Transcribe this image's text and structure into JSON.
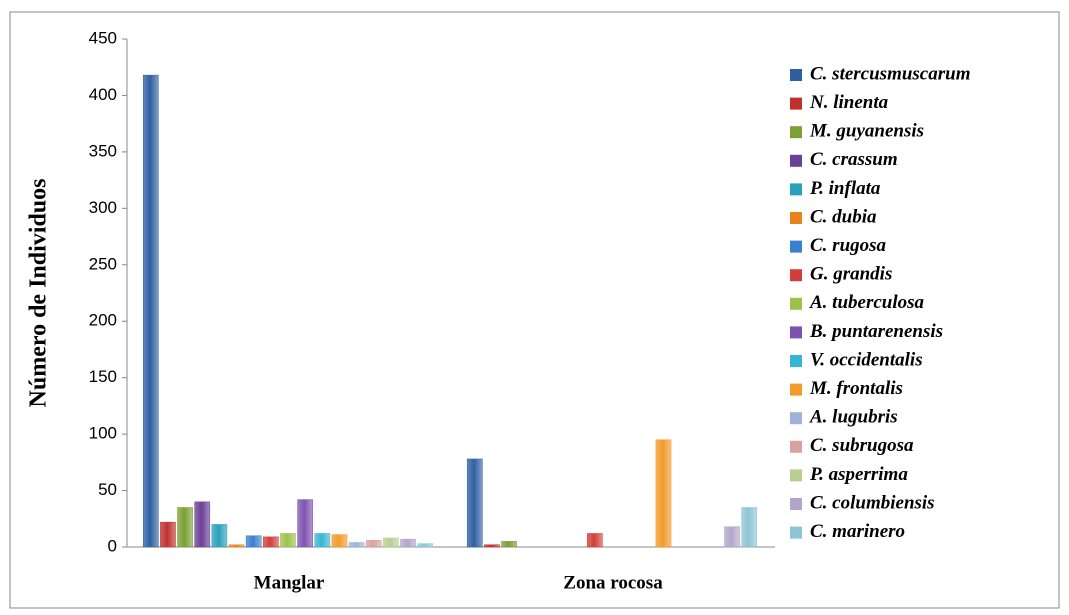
{
  "chart_data": {
    "type": "bar",
    "y_label": "Número de Individuos",
    "categories": [
      "Manglar",
      "Zona rocosa"
    ],
    "ylim": [
      0,
      450
    ],
    "yticks": [
      0,
      50,
      100,
      150,
      200,
      250,
      300,
      350,
      400,
      450
    ],
    "grid": false,
    "series": [
      {
        "name": "C. stercusmuscarum",
        "color": "#2f5fa3",
        "values": [
          418,
          78
        ]
      },
      {
        "name": "N. linenta",
        "color": "#c0312d",
        "values": [
          22,
          2
        ]
      },
      {
        "name": "M. guyanensis",
        "color": "#7ba035",
        "values": [
          35,
          5
        ]
      },
      {
        "name": "C. crassum",
        "color": "#6a3f95",
        "values": [
          40,
          0
        ]
      },
      {
        "name": "P. inflata",
        "color": "#2aa0bb",
        "values": [
          20,
          0
        ]
      },
      {
        "name": "C. dubia",
        "color": "#e8821e",
        "values": [
          2,
          0
        ]
      },
      {
        "name": "C. rugosa",
        "color": "#3a7fd0",
        "values": [
          10,
          0
        ]
      },
      {
        "name": "G. grandis",
        "color": "#d23f3a",
        "values": [
          9,
          12
        ]
      },
      {
        "name": "A. tuberculosa",
        "color": "#9bc34a",
        "values": [
          12,
          0
        ]
      },
      {
        "name": "B. puntarenensis",
        "color": "#8052b0",
        "values": [
          42,
          0
        ]
      },
      {
        "name": "V. occidentalis",
        "color": "#36b6d1",
        "values": [
          12,
          0
        ]
      },
      {
        "name": "M. frontalis",
        "color": "#f39a2a",
        "values": [
          11,
          95
        ]
      },
      {
        "name": "A. lugubris",
        "color": "#9db4d6",
        "values": [
          4,
          0
        ]
      },
      {
        "name": "C. subrugosa",
        "color": "#d8a29f",
        "values": [
          6,
          0
        ]
      },
      {
        "name": "P. asperrima",
        "color": "#b8cf91",
        "values": [
          8,
          0
        ]
      },
      {
        "name": "C. columbiensis",
        "color": "#b3a5c9",
        "values": [
          7,
          18
        ]
      },
      {
        "name": "C. marinero",
        "color": "#8dc5d6",
        "values": [
          3,
          35
        ]
      }
    ]
  }
}
